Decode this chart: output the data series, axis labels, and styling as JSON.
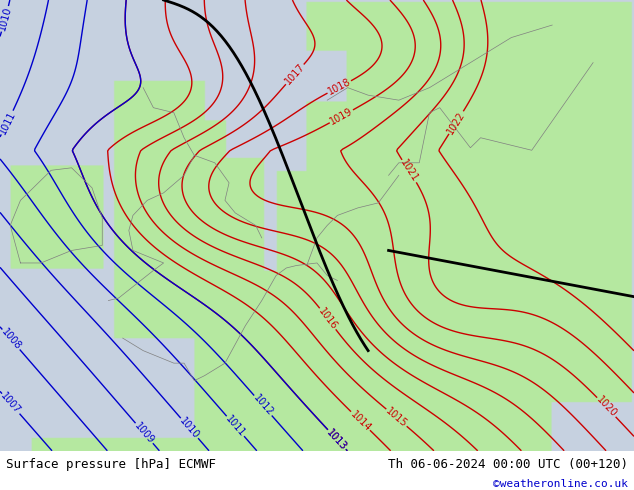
{
  "title_left": "Surface pressure [hPa] ECMWF",
  "title_right": "Th 06-06-2024 00:00 UTC (00+120)",
  "credit": "©weatheronline.co.uk",
  "credit_color": "#0000cc",
  "footer_bg": "#ffffff",
  "land_color": [
    0.71,
    0.91,
    0.63
  ],
  "sea_color": [
    0.78,
    0.82,
    0.88
  ],
  "contour_color_red": "#cc0000",
  "contour_color_blue": "#0000cc",
  "footer_fontsize": 9,
  "xmin": -11,
  "xmax": 20,
  "ymin": 44,
  "ymax": 62
}
